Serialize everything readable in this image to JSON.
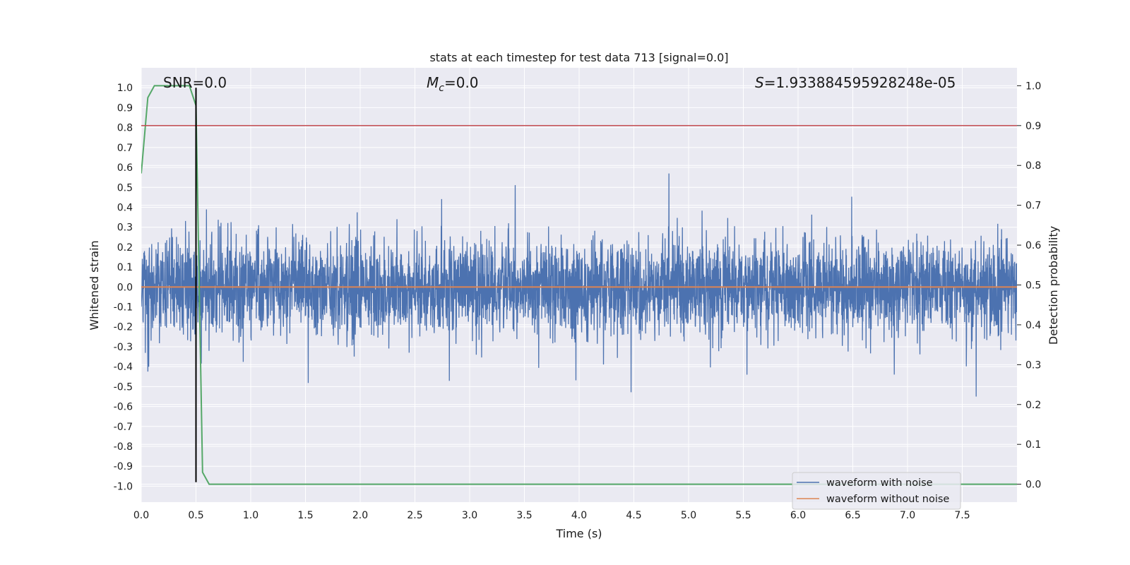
{
  "chart_data": {
    "type": "line",
    "title": "stats at each timestep for test data 713 [signal=0.0]",
    "xlabel": "Time (s)",
    "ylabel": "Whitened strain",
    "y2label": "Detection probability",
    "xlim": [
      0.0,
      8.0
    ],
    "ylim": [
      -1.08,
      1.1
    ],
    "y2lim": [
      -0.045,
      1.045
    ],
    "xticks": [
      0.0,
      0.5,
      1.0,
      1.5,
      2.0,
      2.5,
      3.0,
      3.5,
      4.0,
      4.5,
      5.0,
      5.5,
      6.0,
      6.5,
      7.0,
      7.5
    ],
    "xtick_labels": [
      "0.0",
      "0.5",
      "1.0",
      "1.5",
      "2.0",
      "2.5",
      "3.0",
      "3.5",
      "4.0",
      "4.5",
      "5.0",
      "5.5",
      "6.0",
      "6.5",
      "7.0",
      "7.5"
    ],
    "yticks": [
      1.0,
      0.9,
      0.8,
      0.7,
      0.6,
      0.5,
      0.4,
      0.3,
      0.2,
      0.1,
      0.0,
      -0.1,
      -0.2,
      -0.3,
      -0.4,
      -0.5,
      -0.6,
      -0.7,
      -0.8,
      -0.9,
      -1.0
    ],
    "ytick_labels": [
      "1.0",
      "0.9",
      "0.8",
      "0.7",
      "0.6",
      "0.5",
      "0.4",
      "0.3",
      "0.2",
      "0.1",
      "0.0",
      "-0.1",
      "-0.2",
      "-0.3",
      "-0.4",
      "-0.5",
      "-0.6",
      "-0.7",
      "-0.8",
      "-0.9",
      "-1.0"
    ],
    "y2ticks": [
      1.0,
      0.9,
      0.8,
      0.7,
      0.6,
      0.5,
      0.4,
      0.3,
      0.2,
      0.1,
      0.0
    ],
    "y2tick_labels": [
      "1.0",
      "0.9",
      "0.8",
      "0.7",
      "0.6",
      "0.5",
      "0.4",
      "0.3",
      "0.2",
      "0.1",
      "0.0"
    ],
    "grid": true,
    "annotations": {
      "snr": "SNR=0.0",
      "mc_symbol": "M",
      "mc_sub": "c",
      "mc_value": "=0.0",
      "s_symbol": "S",
      "s_value": "=1.933884595928248e-05"
    },
    "threshold": {
      "axis": "y2",
      "value": 0.9,
      "color": "#c44e52"
    },
    "vline": {
      "x": 0.5,
      "ymin": -0.98,
      "ymax": 1.0,
      "color": "#000000"
    },
    "series": [
      {
        "name": "waveform with noise",
        "axis": "y",
        "color": "#4c72b0",
        "kind": "noise",
        "duration_s": 8.0,
        "sigma": 0.12,
        "seed": 713
      },
      {
        "name": "waveform without noise",
        "axis": "y",
        "color": "#dd8452",
        "x": [
          0.0,
          8.0
        ],
        "y": [
          0.0,
          0.0
        ]
      },
      {
        "name": "detection probability",
        "axis": "y2",
        "color": "#55a868",
        "in_legend": false,
        "x": [
          0.0,
          0.06,
          0.12,
          0.44,
          0.5,
          0.56,
          0.62,
          8.0
        ],
        "y": [
          0.78,
          0.97,
          1.0,
          1.0,
          0.95,
          0.03,
          0.0,
          0.0
        ]
      }
    ],
    "legend": {
      "location": "lower-right",
      "entries": [
        "waveform with noise",
        "waveform without noise"
      ]
    }
  }
}
